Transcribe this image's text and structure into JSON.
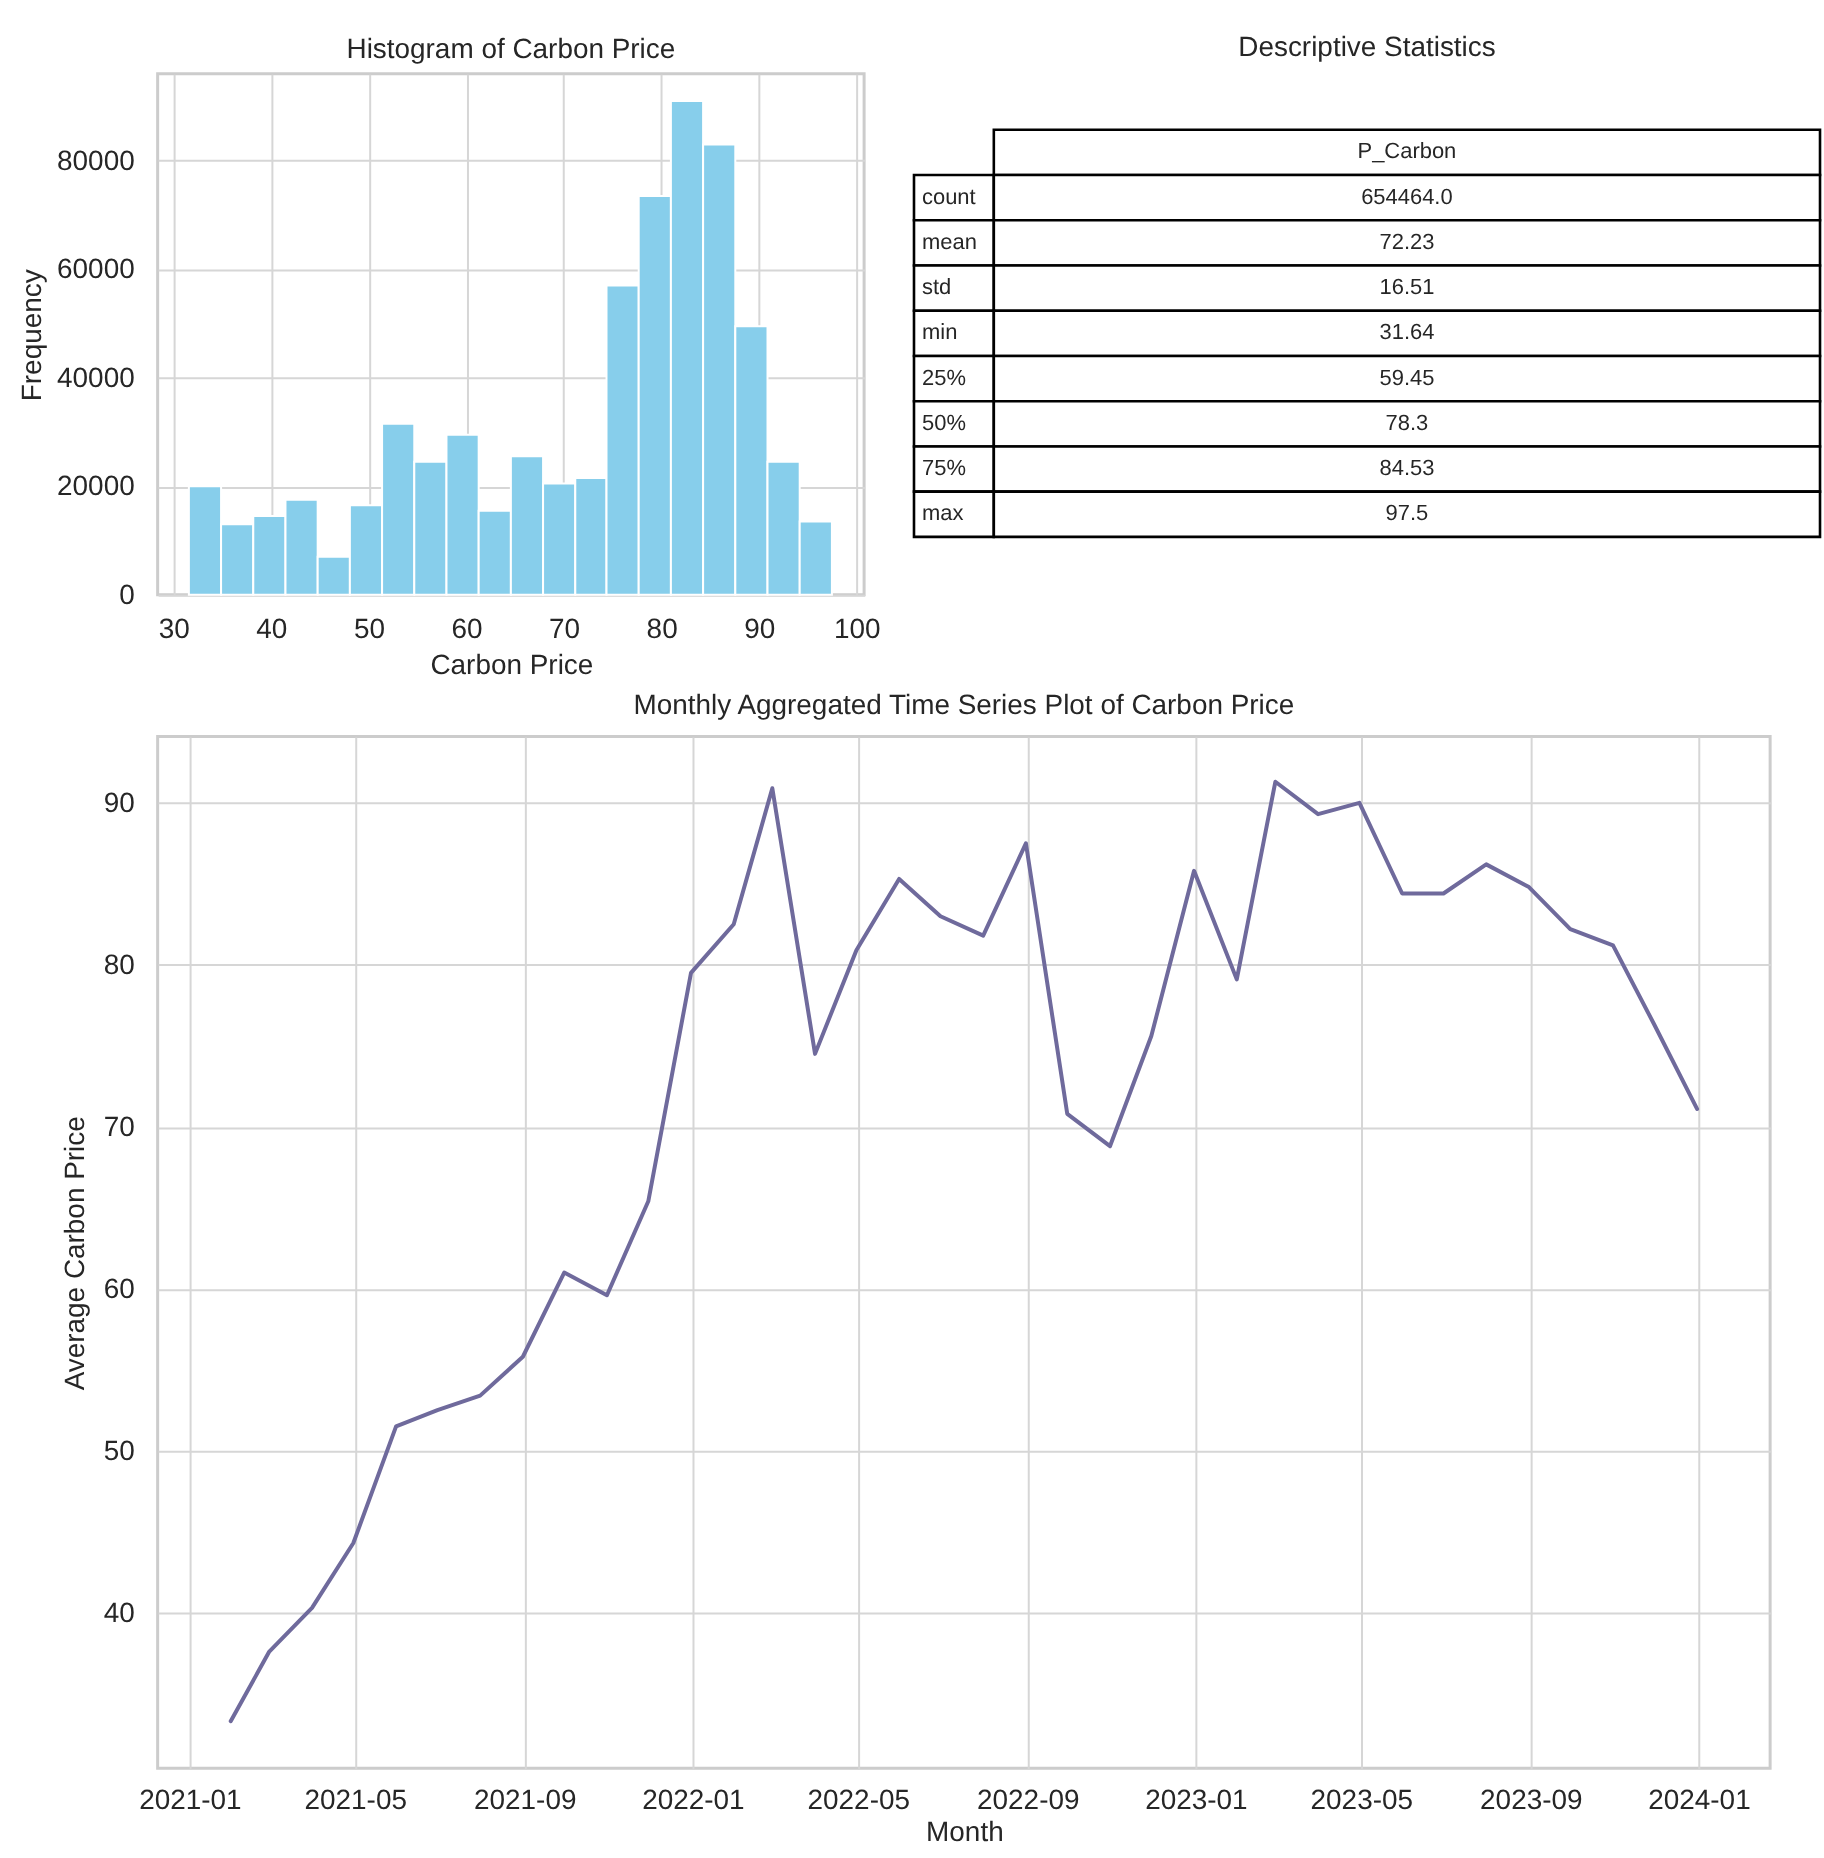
{
  "chart_data": [
    {
      "type": "histogram",
      "title": "Histogram of Carbon Price",
      "xlabel": "Carbon Price",
      "ylabel": "Frequency",
      "color": "#87ceeb",
      "bins": [
        31.6,
        34.9,
        38.2,
        41.5,
        44.8,
        48.1,
        51.4,
        54.7,
        58.0,
        61.3,
        64.6,
        67.9,
        71.2,
        74.4,
        77.7,
        81.0,
        84.3,
        87.6,
        90.9,
        94.2,
        97.5
      ],
      "values": [
        20000,
        13000,
        14500,
        17500,
        7000,
        16500,
        31500,
        24500,
        29500,
        15500,
        25500,
        20500,
        21500,
        57000,
        73500,
        91000,
        83000,
        49500,
        24500,
        13500
      ],
      "xlim": [
        28.4,
        100.8
      ],
      "ylim": [
        0,
        96000
      ],
      "xticks": [
        30,
        40,
        50,
        60,
        70,
        80,
        90,
        100
      ],
      "yticks": [
        0,
        20000,
        40000,
        60000,
        80000
      ],
      "grid": true
    },
    {
      "type": "other",
      "title": "Descriptive Statistics",
      "categories": [
        "P_Carbon"
      ],
      "y_categories": [
        "count",
        "mean",
        "std",
        "min",
        "25%",
        "50%",
        "75%",
        "max"
      ],
      "cell_labels": [
        [
          "654464.0"
        ],
        [
          "72.23"
        ],
        [
          "16.51"
        ],
        [
          "31.64"
        ],
        [
          "59.45"
        ],
        [
          "78.3"
        ],
        [
          "84.53"
        ],
        [
          "97.5"
        ]
      ]
    },
    {
      "type": "line",
      "title": "Monthly Aggregated Time Series Plot of Carbon Price",
      "xlabel": "Month",
      "ylabel": "Average Carbon Price",
      "x": [
        "2021-01-31",
        "2021-02-28",
        "2021-03-31",
        "2021-04-30",
        "2021-05-31",
        "2021-06-30",
        "2021-07-31",
        "2021-08-31",
        "2021-09-30",
        "2021-10-31",
        "2021-11-30",
        "2021-12-31",
        "2022-01-31",
        "2022-02-28",
        "2022-03-31",
        "2022-04-30",
        "2022-05-31",
        "2022-06-30",
        "2022-07-31",
        "2022-08-31",
        "2022-09-30",
        "2022-10-31",
        "2022-11-30",
        "2022-12-31",
        "2023-01-31",
        "2023-02-28",
        "2023-03-31",
        "2023-04-30",
        "2023-05-31",
        "2023-06-30",
        "2023-07-31",
        "2023-08-31",
        "2023-09-30",
        "2023-10-31",
        "2023-11-30",
        "2023-12-31"
      ],
      "series": [
        {
          "color": "#6f6a9c",
          "values": [
            33.3,
            37.6,
            40.3,
            44.3,
            51.5,
            52.5,
            53.4,
            55.8,
            61.0,
            59.6,
            65.4,
            79.5,
            82.5,
            90.9,
            74.5,
            80.9,
            85.3,
            83.0,
            81.8,
            87.5,
            70.8,
            68.8,
            75.6,
            85.8,
            79.1,
            91.3,
            89.3,
            90.0,
            84.4,
            84.4,
            86.2,
            84.8,
            82.2,
            81.2,
            76.3,
            71.1
          ]
        }
      ],
      "xlim": [
        "2020-12-09",
        "2024-02-22"
      ],
      "ylim": [
        30.4,
        94.1
      ],
      "xticks": [
        "2021-01",
        "2021-05",
        "2021-09",
        "2022-01",
        "2022-05",
        "2022-09",
        "2023-01",
        "2023-05",
        "2023-09",
        "2024-01"
      ],
      "yticks": [
        40,
        50,
        60,
        70,
        80,
        90
      ],
      "grid": true
    }
  ]
}
